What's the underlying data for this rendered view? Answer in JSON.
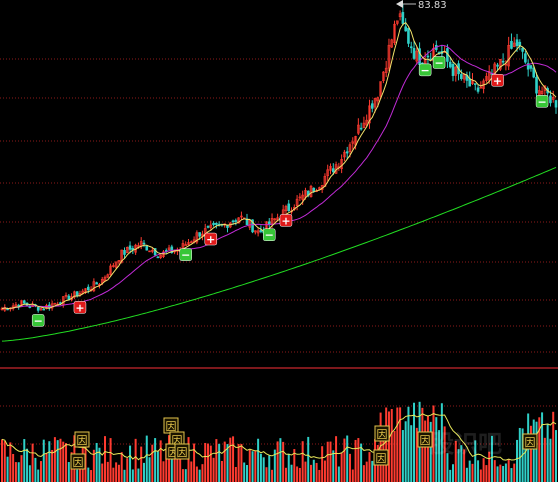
{
  "chart": {
    "type": "stock-candlestick-volume",
    "peak_label": "83.83",
    "marker_labels": {
      "buy": "+",
      "sell": "−",
      "volume_flag": "因"
    },
    "colors": {
      "background": "#000000",
      "grid": "#8b1a1a",
      "up": "#ff3b30",
      "down": "#2fd0c8",
      "ma_short": "#f3e36b",
      "ma_mid": "#c02bd6",
      "ma_long": "#22dd22",
      "vol_ma": "#e8e85a",
      "buy": "#e01a1a",
      "sell": "#37c637",
      "flag": "#e3c44b",
      "label": "#d8d8d8"
    }
  },
  "chart_data": {
    "type": "candlestick",
    "title": "",
    "xlabel": "",
    "ylabel": "",
    "peak_value": 83.83,
    "price_curve_approx": [
      30,
      31,
      30,
      31.5,
      33,
      35,
      40,
      42,
      40,
      41,
      44,
      45,
      47,
      44,
      47,
      50,
      53,
      57,
      63,
      70,
      83.83,
      76,
      78,
      73,
      70,
      74,
      79,
      71,
      68
    ],
    "buy_signals": 4,
    "sell_signals": 5,
    "volume_flags": 10
  },
  "watermark": "股识吧"
}
